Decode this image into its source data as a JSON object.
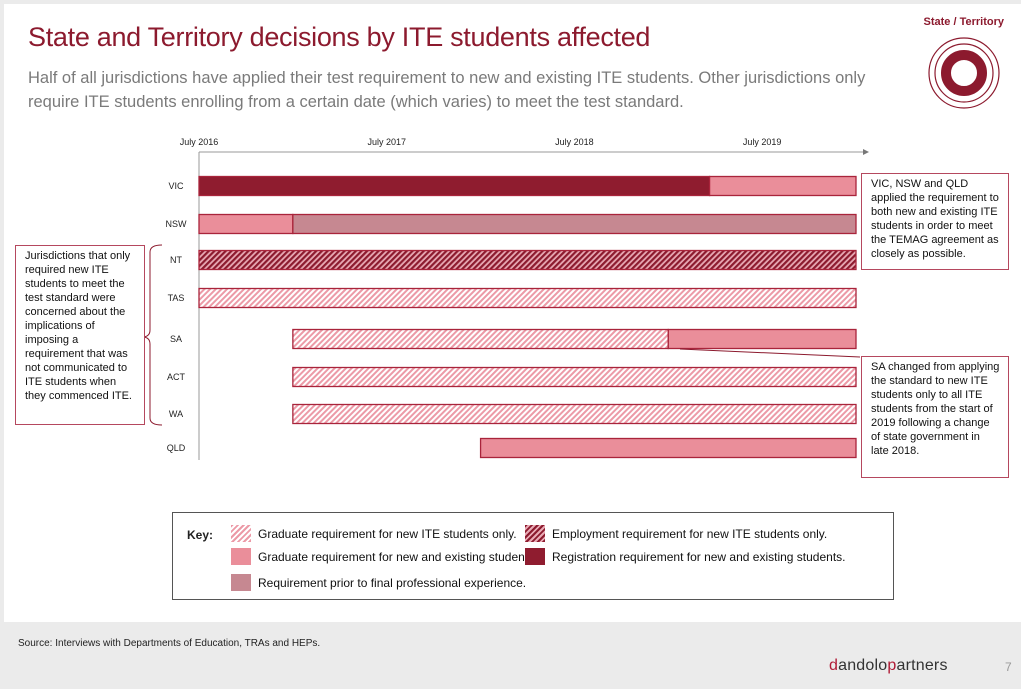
{
  "slide": {
    "title": "State and Territory decisions by ITE students affected",
    "subtitle": "Half of all jurisdictions have applied their test requirement to new and existing ITE students. Other jurisdictions only require ITE students enrolling from a certain date (which varies) to meet the test standard.",
    "section_tag": "State / Territory",
    "source": "Source: Interviews with Departments of Education, TRAs and HEPs.",
    "brand": {
      "d": "d",
      "andolo": "andolo",
      "p": "p",
      "artners": "artners"
    },
    "page_number": "7"
  },
  "notes": {
    "left": "Jurisdictions that only required new ITE students to meet the test standard were concerned about the implications of imposing a requirement that was not communicated to ITE students when they commenced ITE.",
    "right_top": "VIC, NSW and QLD applied the requirement to both new and existing ITE students in order to meet the TEMAG agreement as closely as possible.",
    "right_bottom": "SA changed from applying the standard to new ITE students only to all ITE students from the start of 2019 following a change of state government in late 2018."
  },
  "key": {
    "label": "Key:",
    "items": [
      {
        "id": "grad_new",
        "label": "Graduate requirement for new ITE students only."
      },
      {
        "id": "emp_new",
        "label": "Employment requirement for new ITE students only."
      },
      {
        "id": "grad_all",
        "label": "Graduate requirement for new and existing students."
      },
      {
        "id": "reg_all",
        "label": "Registration requirement for new and existing students."
      },
      {
        "id": "prior_pe",
        "label": "Requirement prior to final professional experience."
      }
    ]
  },
  "chart_data": {
    "type": "gantt",
    "title": "",
    "x_unit": "year (decimal; 2016.5 = July 2016)",
    "xlim": [
      2016.5,
      2020.0
    ],
    "x_ticks": [
      {
        "value": 2016.5,
        "label": "July 2016"
      },
      {
        "value": 2017.5,
        "label": "July 2017"
      },
      {
        "value": 2018.5,
        "label": "July 2018"
      },
      {
        "value": 2019.5,
        "label": "July 2019"
      }
    ],
    "categories": {
      "grad_new": {
        "color": "#ec9aa7",
        "pattern": "hatch-light"
      },
      "emp_new": {
        "color": "#8c1a2e",
        "pattern": "hatch-dark"
      },
      "grad_all": {
        "color": "#ea8e9a",
        "pattern": "solid"
      },
      "reg_all": {
        "color": "#8f1c2f",
        "pattern": "solid"
      },
      "prior_pe": {
        "color": "#c68891",
        "pattern": "solid"
      }
    },
    "rows": [
      {
        "label": "VIC",
        "segments": [
          {
            "start": 2016.5,
            "end": 2019.22,
            "category": "reg_all"
          },
          {
            "start": 2019.22,
            "end": 2020.0,
            "category": "grad_all"
          }
        ]
      },
      {
        "label": "NSW",
        "segments": [
          {
            "start": 2016.5,
            "end": 2017.0,
            "category": "grad_all"
          },
          {
            "start": 2017.0,
            "end": 2020.0,
            "category": "prior_pe"
          }
        ]
      },
      {
        "label": "NT",
        "segments": [
          {
            "start": 2016.5,
            "end": 2020.0,
            "category": "emp_new"
          }
        ]
      },
      {
        "label": "TAS",
        "segments": [
          {
            "start": 2016.5,
            "end": 2020.0,
            "category": "grad_new"
          }
        ]
      },
      {
        "label": "SA",
        "segments": [
          {
            "start": 2017.0,
            "end": 2019.0,
            "category": "grad_new"
          },
          {
            "start": 2019.0,
            "end": 2020.0,
            "category": "grad_all"
          }
        ]
      },
      {
        "label": "ACT",
        "segments": [
          {
            "start": 2017.0,
            "end": 2020.0,
            "category": "grad_new"
          }
        ]
      },
      {
        "label": "WA",
        "segments": [
          {
            "start": 2017.0,
            "end": 2020.0,
            "category": "grad_new"
          }
        ]
      },
      {
        "label": "QLD",
        "segments": [
          {
            "start": 2018.0,
            "end": 2020.0,
            "category": "grad_all"
          }
        ]
      }
    ]
  }
}
